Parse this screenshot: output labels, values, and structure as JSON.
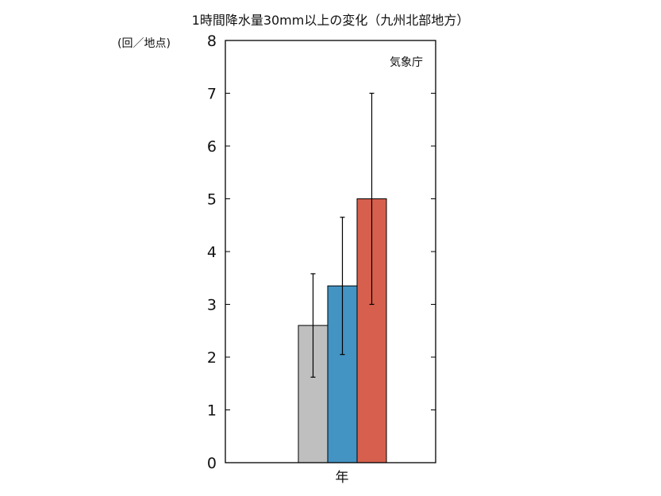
{
  "chart_data": {
    "type": "bar",
    "title": "1時間降水量30mm以上の変化（九州北部地方）",
    "ylabel": "(回／地点)",
    "xlabel": "年",
    "annotation": "気象庁",
    "ylim": [
      0,
      8
    ],
    "yticks": [
      "0",
      "1",
      "2",
      "3",
      "4",
      "5",
      "6",
      "7",
      "8"
    ],
    "grid": false,
    "series": [
      {
        "color": "#bfbfbf",
        "value": 2.6,
        "error_low": 1.62,
        "error_high": 3.58
      },
      {
        "color": "#4393c3",
        "value": 3.35,
        "error_low": 2.05,
        "error_high": 4.65
      },
      {
        "color": "#d6604d",
        "value": 5.0,
        "error_low": 3.0,
        "error_high": 7.0
      }
    ]
  }
}
